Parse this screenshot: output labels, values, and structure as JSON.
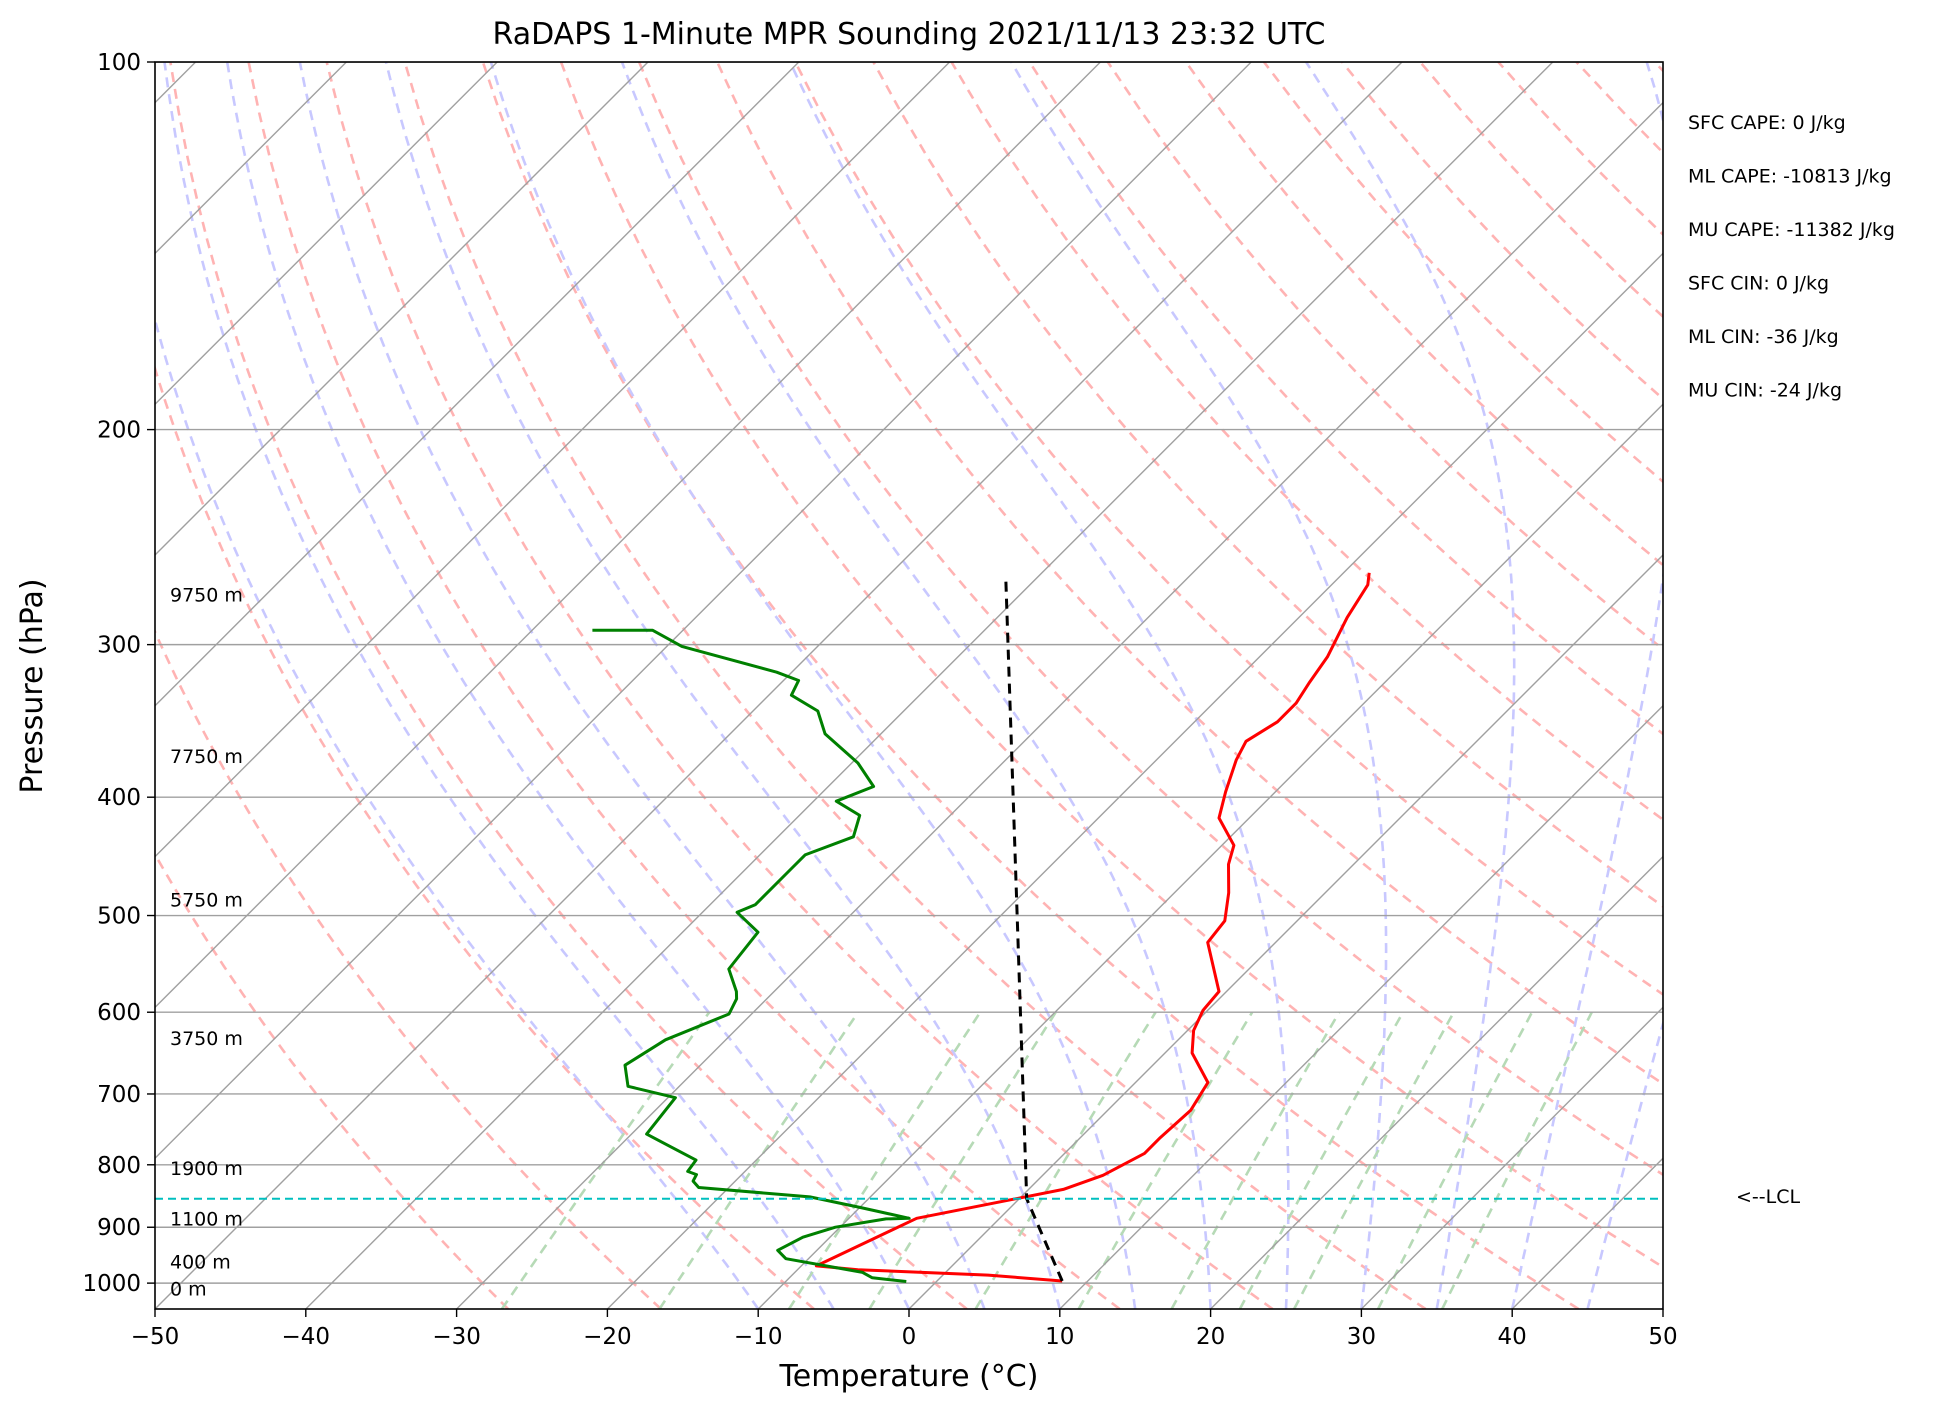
{
  "chart_data": {
    "type": "line",
    "title": "RaDAPS 1-Minute MPR Sounding 2021/11/13 23:32 UTC",
    "xlabel": "Temperature (°C)",
    "ylabel": "Pressure (hPa)",
    "xlim": [
      -50,
      50
    ],
    "ylim": [
      1050,
      100
    ],
    "y_scale": "log",
    "x_ticks": [
      "−50",
      "−40",
      "−30",
      "−20",
      "−10",
      "0",
      "10",
      "20",
      "30",
      "40",
      "50"
    ],
    "y_ticks": [
      "100",
      "200",
      "300",
      "400",
      "500",
      "600",
      "700",
      "800",
      "900",
      "1000"
    ],
    "skew": "skew-T",
    "grid": true,
    "series": [
      {
        "role": "temperature",
        "color": "#ff0000",
        "points": [
          [
            8.3,
            996
          ],
          [
            3,
            985
          ],
          [
            -6,
            975
          ],
          [
            -9,
            968
          ],
          [
            -5.5,
            885
          ],
          [
            2.3,
            838
          ],
          [
            4,
            816
          ],
          [
            5.3,
            783
          ],
          [
            5.3,
            760
          ],
          [
            5.5,
            722
          ],
          [
            4.8,
            685
          ],
          [
            1.8,
            648
          ],
          [
            0.4,
            621
          ],
          [
            -0.3,
            598
          ],
          [
            -0.5,
            577
          ],
          [
            -4.5,
            526
          ],
          [
            -4.8,
            505
          ],
          [
            -6.4,
            479
          ],
          [
            -8.3,
            454
          ],
          [
            -9.2,
            438
          ],
          [
            -12,
            416
          ],
          [
            -13.3,
            396
          ],
          [
            -14.7,
            373
          ],
          [
            -15.3,
            360
          ],
          [
            -14.5,
            347
          ],
          [
            -14.5,
            335
          ],
          [
            -15,
            322
          ],
          [
            -15.5,
            307
          ],
          [
            -16.8,
            285
          ],
          [
            -17.6,
            268
          ],
          [
            -18.3,
            262
          ]
        ]
      },
      {
        "role": "dewpoint",
        "color": "#008000",
        "points": [
          [
            -2,
            997
          ],
          [
            -4.5,
            990
          ],
          [
            -5.5,
            980
          ],
          [
            -11.5,
            955
          ],
          [
            -12.6,
            940
          ],
          [
            -11.8,
            917
          ],
          [
            -10.3,
            900
          ],
          [
            -7.5,
            886
          ],
          [
            -6,
            885
          ],
          [
            -10,
            867
          ],
          [
            -14,
            850
          ],
          [
            -22,
            835
          ],
          [
            -22.8,
            825
          ],
          [
            -23,
            815
          ],
          [
            -23.8,
            810
          ],
          [
            -24,
            793
          ],
          [
            -29,
            755
          ],
          [
            -29.5,
            705
          ],
          [
            -33.4,
            690
          ],
          [
            -35,
            663
          ],
          [
            -34,
            632
          ],
          [
            -31.5,
            602
          ],
          [
            -32,
            585
          ],
          [
            -32.5,
            577
          ],
          [
            -34.5,
            553
          ],
          [
            -35,
            516
          ],
          [
            -37.7,
            497
          ],
          [
            -37,
            490
          ],
          [
            -37,
            458
          ],
          [
            -37,
            446
          ],
          [
            -35,
            431
          ],
          [
            -36,
            414
          ],
          [
            -38.5,
            403
          ],
          [
            -37,
            392
          ],
          [
            -39.6,
            375
          ],
          [
            -43.7,
            355
          ],
          [
            -45.7,
            340
          ],
          [
            -48.5,
            330
          ],
          [
            -49,
            321
          ],
          [
            -51,
            316
          ],
          [
            -59,
            301
          ],
          [
            -62,
            292
          ],
          [
            -66,
            292
          ]
        ]
      },
      {
        "role": "parcel",
        "color": "#000000",
        "points": [
          [
            8.3,
            996
          ],
          [
            0.5,
            853
          ],
          [
            -42,
            265
          ]
        ]
      }
    ],
    "lcl": {
      "label": "<--LCL",
      "pressure": 853,
      "color": "#00bfbf"
    },
    "height_labels": [
      "9750 m",
      "7750 m",
      "5750 m",
      "3750 m",
      "1900 m",
      "1100 m",
      "400 m",
      "0 m"
    ],
    "height_pressures": [
      273,
      370,
      485,
      630,
      805,
      885,
      960,
      1010
    ],
    "background_lines": {
      "isotherms_color": "#a0a0a0",
      "dry_adiabats_color": "#ffb3b3",
      "moist_adiabats_color": "#c8c8ff",
      "mixing_ratio_color": "#b6dab6"
    }
  },
  "stats": [
    {
      "text": "SFC CAPE: 0 J/kg"
    },
    {
      "text": "ML CAPE: -10813 J/kg"
    },
    {
      "text": "MU CAPE: -11382 J/kg"
    },
    {
      "text": "SFC CIN: 0 J/kg"
    },
    {
      "text": "ML CIN: -36 J/kg"
    },
    {
      "text": "MU CIN: -24 J/kg"
    }
  ]
}
